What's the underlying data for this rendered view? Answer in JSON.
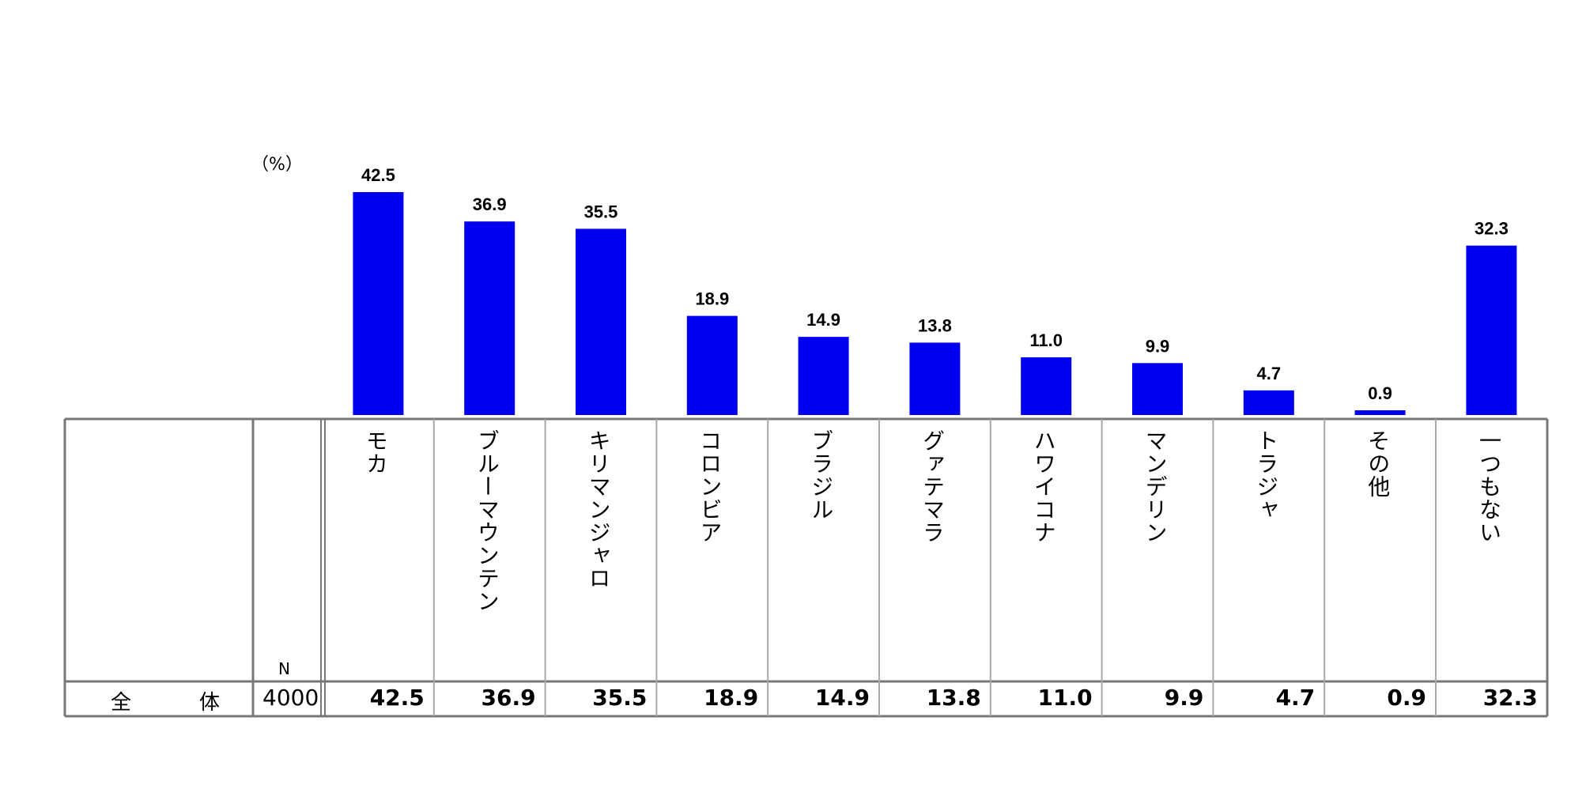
{
  "unit_label": "（%）",
  "n_header": "N",
  "row": {
    "label": "全　体",
    "n": "4000"
  },
  "chart_data": {
    "type": "bar",
    "categories": [
      "モカ",
      "ブルーマウンテン",
      "キリマンジャロ",
      "コロンビア",
      "ブラジル",
      "グァテマラ",
      "ハワイコナ",
      "マンデリン",
      "トラジャ",
      "その他",
      "一つもない"
    ],
    "values": [
      42.5,
      36.9,
      35.5,
      18.9,
      14.9,
      13.8,
      11.0,
      9.9,
      4.7,
      0.9,
      32.3
    ],
    "value_labels": [
      "42.5",
      "36.9",
      "35.5",
      "18.9",
      "14.9",
      "13.8",
      "11.0",
      "9.9",
      "4.7",
      "0.9",
      "32.3"
    ],
    "bar_color": "#0000ee",
    "ylim": [
      0,
      42.5
    ]
  }
}
